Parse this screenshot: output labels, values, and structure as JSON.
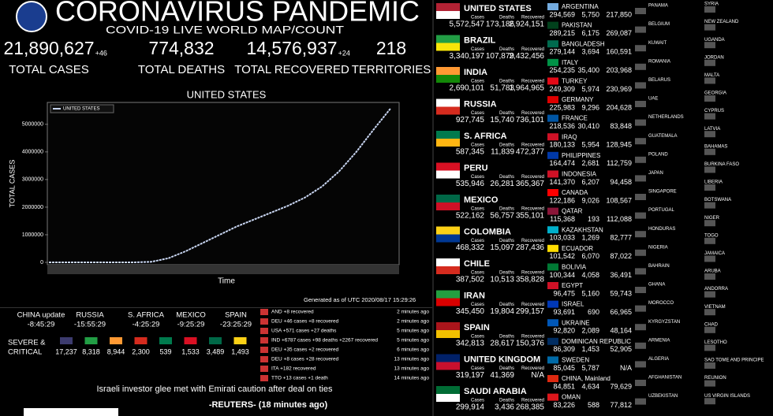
{
  "header": {
    "title": "CORONAVIRUS PANDEMIC",
    "subtitle": "COVID-19 LIVE WORLD MAP/COUNT"
  },
  "stats": [
    {
      "value": "21,890,627",
      "delta": "+46",
      "label": "TOTAL CASES",
      "color": "#f2e234"
    },
    {
      "value": "774,832",
      "delta": null,
      "label": "TOTAL DEATHS",
      "color": "#ffffff"
    },
    {
      "value": "14,576,937",
      "delta": "+24",
      "label": "TOTAL RECOVERED",
      "color": "#5fe36a"
    },
    {
      "value": "218",
      "delta": null,
      "label": "TERRITORIES",
      "color": "#ffffff"
    }
  ],
  "chart_data": {
    "type": "line",
    "title": "UNITED STATES",
    "y_label": "TOTAL CASES",
    "x_label": "Time",
    "series": [
      {
        "name": "UNITED STATES",
        "color": "#c9d6f2",
        "values": [
          0,
          0,
          0,
          0,
          0,
          0,
          20000,
          150000,
          400000,
          700000,
          1000000,
          1300000,
          1550000,
          1800000,
          2050000,
          2350000,
          2750000,
          3300000,
          4000000,
          4800000,
          5570000
        ]
      }
    ],
    "ylim": [
      0,
      5650000
    ],
    "yticks": [
      0,
      1000000,
      2000000,
      3000000,
      4000000,
      5000000
    ],
    "grid": false
  },
  "generated": "Generated as of UTC 2020/08/17 15:29:26",
  "clocks": [
    {
      "name": "CHINA update",
      "time": "-8:45:29"
    },
    {
      "name": "RUSSIA",
      "time": "-15:55:29"
    },
    {
      "name": "S. AFRICA",
      "time": "-4:25:29"
    },
    {
      "name": "MEXICO",
      "time": "-9:25:29"
    },
    {
      "name": "SPAIN",
      "time": "-23:25:29"
    }
  ],
  "critical": {
    "label": [
      "SEVERE &",
      "CRITICAL"
    ],
    "values": [
      "17,237",
      "8,318",
      "8,944",
      "2,300",
      "539",
      "1,533",
      "3,489",
      "1,493"
    ],
    "flags": [
      "#3c3b6e",
      "#229e45",
      "#ff9933",
      "#d52b1e",
      "#007a4d",
      "#d91023",
      "#006847",
      "#fcd116"
    ]
  },
  "feed": [
    {
      "text": "AND +8 recovered",
      "time": "2 minutes ago"
    },
    {
      "text": "DEU +46 cases +8 recovered",
      "time": "2 minutes ago"
    },
    {
      "text": "USA +571 cases +27 deaths",
      "time": "5 minutes ago"
    },
    {
      "text": "IND +6787 cases +98 deaths +2267 recovered",
      "time": "5 minutes ago"
    },
    {
      "text": "DEU +35 cases +2 recovered",
      "time": "6 minutes ago"
    },
    {
      "text": "DEU +8 cases +28 recovered",
      "time": "13 minutes ago"
    },
    {
      "text": "ITA +182 recovered",
      "time": "13 minutes ago"
    },
    {
      "text": "TTO +13 cases +1 death",
      "time": "14 minutes ago"
    }
  ],
  "headline": "Israeli investor glee met with Emirati caution after deal on ties",
  "source": "-REUTERS- (18 minutes ago)",
  "col_labels": [
    "Cases",
    "Deaths",
    "Recovered"
  ],
  "countries": [
    {
      "name": "UNITED STATES",
      "cases": "5,572,547",
      "deaths": "173,186",
      "recovered": "2,924,151",
      "flag": [
        "#b22234",
        "#ffffff"
      ]
    },
    {
      "name": "BRAZIL",
      "cases": "3,340,197",
      "deaths": "107,879",
      "recovered": "2,432,456",
      "flag": [
        "#229e45",
        "#f8e509"
      ]
    },
    {
      "name": "INDIA",
      "cases": "2,690,101",
      "deaths": "51,783",
      "recovered": "1,964,965",
      "flag": [
        "#ff9933",
        "#138808"
      ]
    },
    {
      "name": "RUSSIA",
      "cases": "927,745",
      "deaths": "15,740",
      "recovered": "736,101",
      "flag": [
        "#ffffff",
        "#d52b1e"
      ]
    },
    {
      "name": "S. AFRICA",
      "cases": "587,345",
      "deaths": "11,839",
      "recovered": "472,377",
      "flag": [
        "#007a4d",
        "#ffb612"
      ]
    },
    {
      "name": "PERU",
      "cases": "535,946",
      "deaths": "26,281",
      "recovered": "365,367",
      "flag": [
        "#d91023",
        "#ffffff"
      ]
    },
    {
      "name": "MEXICO",
      "cases": "522,162",
      "deaths": "56,757",
      "recovered": "355,101",
      "flag": [
        "#006847",
        "#ce1126"
      ]
    },
    {
      "name": "COLOMBIA",
      "cases": "468,332",
      "deaths": "15,097",
      "recovered": "287,436",
      "flag": [
        "#fcd116",
        "#003893"
      ]
    },
    {
      "name": "CHILE",
      "cases": "387,502",
      "deaths": "10,513",
      "recovered": "358,828",
      "flag": [
        "#ffffff",
        "#d52b1e"
      ]
    },
    {
      "name": "IRAN",
      "cases": "345,450",
      "deaths": "19,804",
      "recovered": "299,157",
      "flag": [
        "#239f40",
        "#da0000"
      ]
    },
    {
      "name": "SPAIN",
      "cases": "342,813",
      "deaths": "28,617",
      "recovered": "150,376",
      "flag": [
        "#aa151b",
        "#f1bf00"
      ]
    },
    {
      "name": "UNITED KINGDOM",
      "cases": "319,197",
      "deaths": "41,369",
      "recovered": "N/A",
      "flag": [
        "#012169",
        "#c8102e"
      ]
    },
    {
      "name": "SAUDI ARABIA",
      "cases": "299,914",
      "deaths": "3,436",
      "recovered": "268,385",
      "flag": [
        "#006c35",
        "#ffffff"
      ]
    }
  ],
  "countries2": [
    {
      "name": "ARGENTINA",
      "cases": "294,569",
      "deaths": "5,750",
      "recovered": "217,850",
      "flag": "#74acdf"
    },
    {
      "name": "PAKISTAN",
      "cases": "289,215",
      "deaths": "6,175",
      "recovered": "269,087",
      "flag": "#01411c"
    },
    {
      "name": "BANGLADESH",
      "cases": "279,144",
      "deaths": "3,694",
      "recovered": "160,591",
      "flag": "#006a4e"
    },
    {
      "name": "ITALY",
      "cases": "254,235",
      "deaths": "35,400",
      "recovered": "203,968",
      "flag": "#009246"
    },
    {
      "name": "TURKEY",
      "cases": "249,309",
      "deaths": "5,974",
      "recovered": "230,969",
      "flag": "#e30a17"
    },
    {
      "name": "GERMANY",
      "cases": "225,983",
      "deaths": "9,296",
      "recovered": "204,628",
      "flag": "#dd0000"
    },
    {
      "name": "FRANCE",
      "cases": "218,536",
      "deaths": "30,410",
      "recovered": "83,848",
      "flag": "#0055a4"
    },
    {
      "name": "IRAQ",
      "cases": "180,133",
      "deaths": "5,954",
      "recovered": "128,945",
      "flag": "#ce1126"
    },
    {
      "name": "PHILIPPINES",
      "cases": "164,474",
      "deaths": "2,681",
      "recovered": "112,759",
      "flag": "#0038a8"
    },
    {
      "name": "INDONESIA",
      "cases": "141,370",
      "deaths": "6,207",
      "recovered": "94,458",
      "flag": "#ce1126"
    },
    {
      "name": "CANADA",
      "cases": "122,186",
      "deaths": "9,026",
      "recovered": "108,567",
      "flag": "#ff0000"
    },
    {
      "name": "QATAR",
      "cases": "115,368",
      "deaths": "193",
      "recovered": "112,088",
      "flag": "#8a1538"
    },
    {
      "name": "KAZAKHSTAN",
      "cases": "103,033",
      "deaths": "1,269",
      "recovered": "82,777",
      "flag": "#00afca"
    },
    {
      "name": "ECUADOR",
      "cases": "101,542",
      "deaths": "6,070",
      "recovered": "87,022",
      "flag": "#ffdd00"
    },
    {
      "name": "BOLIVIA",
      "cases": "100,344",
      "deaths": "4,058",
      "recovered": "36,491",
      "flag": "#007934"
    },
    {
      "name": "EGYPT",
      "cases": "96,475",
      "deaths": "5,160",
      "recovered": "59,743",
      "flag": "#ce1126"
    },
    {
      "name": "ISRAEL",
      "cases": "93,691",
      "deaths": "690",
      "recovered": "66,965",
      "flag": "#0038b8"
    },
    {
      "name": "UKRAINE",
      "cases": "92,820",
      "deaths": "2,089",
      "recovered": "48,164",
      "flag": "#0057b7"
    },
    {
      "name": "DOMINICAN REPUBLIC",
      "cases": "86,309",
      "deaths": "1,453",
      "recovered": "52,905",
      "flag": "#002d62"
    },
    {
      "name": "SWEDEN",
      "cases": "85,045",
      "deaths": "5,787",
      "recovered": "N/A",
      "flag": "#006aa7"
    },
    {
      "name": "CHINA, Mainland",
      "cases": "84,851",
      "deaths": "4,634",
      "recovered": "79,629",
      "flag": "#de2910"
    },
    {
      "name": "OMAN",
      "cases": "83,226",
      "deaths": "588",
      "recovered": "77,812",
      "flag": "#db161b"
    }
  ],
  "countries3": [
    "PANAMA",
    "BELGIUM",
    "KUWAIT",
    "ROMANIA",
    "BELARUS",
    "UAE",
    "NETHERLANDS",
    "GUATEMALA",
    "POLAND",
    "JAPAN",
    "SINGAPORE",
    "PORTUGAL",
    "HONDURAS",
    "NIGERIA",
    "BAHRAIN",
    "GHANA",
    "MOROCCO",
    "KYRGYZSTAN",
    "ARMENIA",
    "ALGERIA",
    "AFGHANISTAN",
    "UZBEKISTAN"
  ],
  "countries4": [
    "SYRIA",
    "NEW ZEALAND",
    "UGANDA",
    "JORDAN",
    "MALTA",
    "GEORGIA",
    "CYPRUS",
    "LATVIA",
    "BAHAMAS",
    "BURKINA FASO",
    "LIBERIA",
    "BOTSWANA",
    "NIGER",
    "TOGO",
    "JAMAICA",
    "ARUBA",
    "ANDORRA",
    "VIETNAM",
    "CHAD",
    "LESOTHO",
    "SAO TOME AND PRINCIPE",
    "REUNION",
    "US VIRGIN ISLANDS"
  ]
}
